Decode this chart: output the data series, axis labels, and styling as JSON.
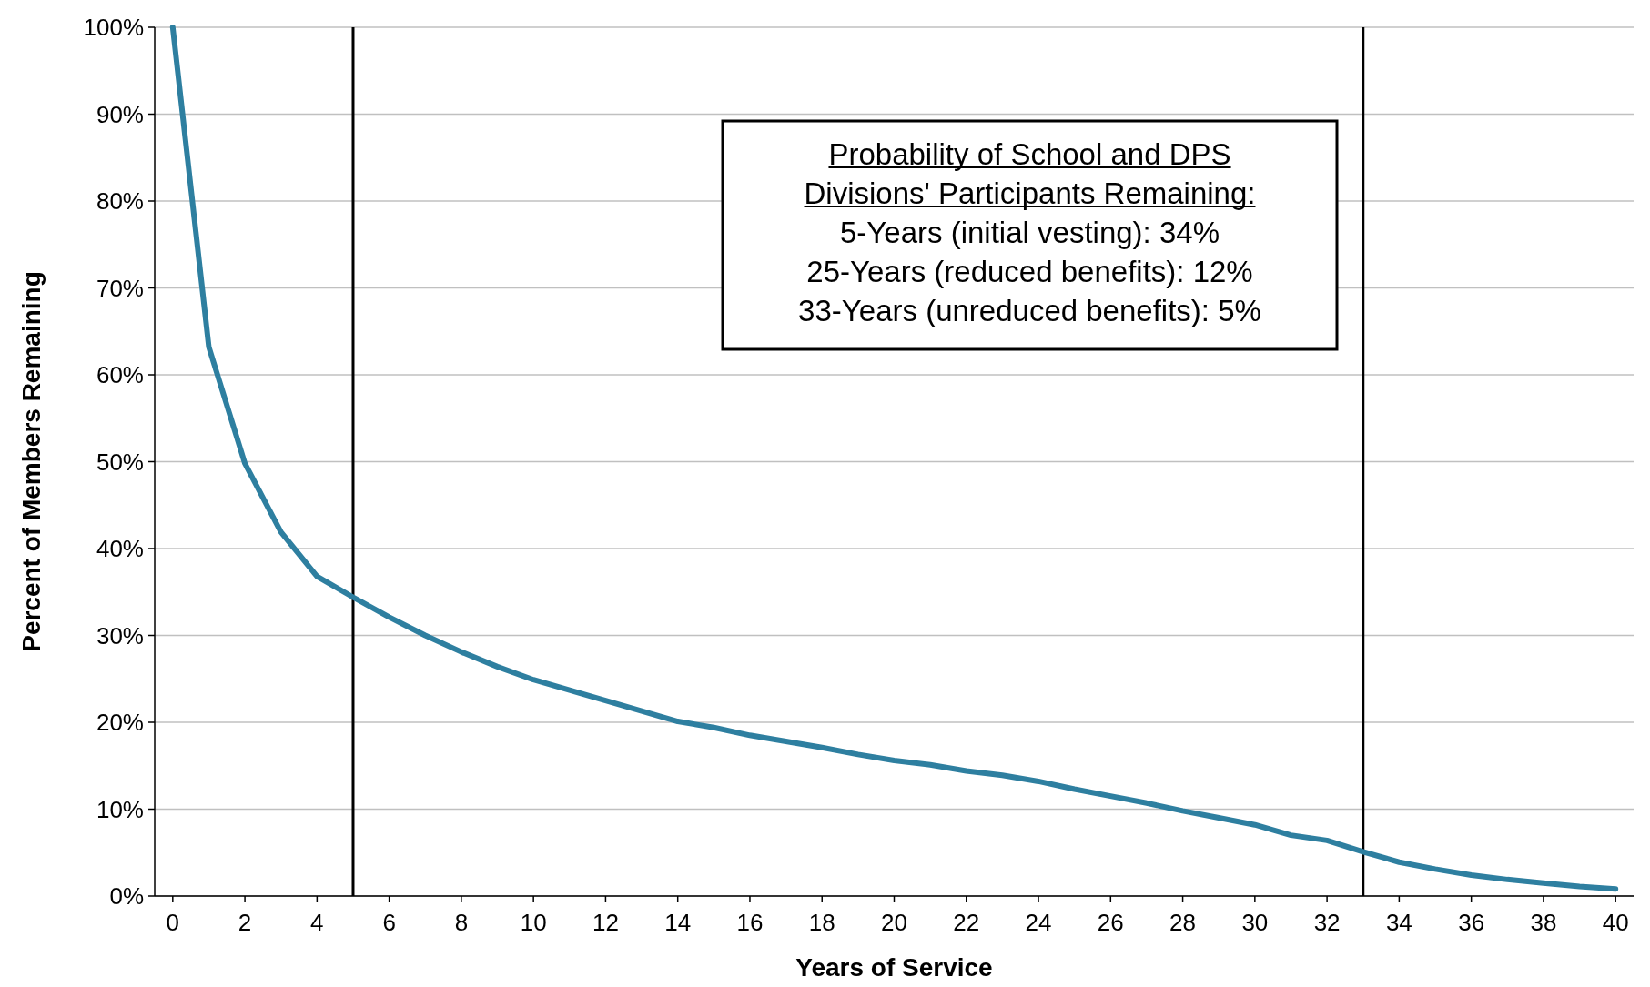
{
  "chart_data": {
    "type": "line",
    "xlabel": "Years of Service",
    "ylabel": "Percent of Members Remaining",
    "x": [
      0,
      1,
      2,
      3,
      4,
      5,
      6,
      7,
      8,
      9,
      10,
      11,
      12,
      13,
      14,
      15,
      16,
      17,
      18,
      19,
      20,
      21,
      22,
      23,
      24,
      25,
      26,
      27,
      28,
      29,
      30,
      31,
      32,
      33,
      34,
      35,
      36,
      37,
      38,
      39,
      40
    ],
    "series": [
      {
        "color": "#2e7fa0",
        "values": [
          100,
          63.2,
          49.8,
          41.9,
          36.8,
          34.4,
          32.1,
          30.0,
          28.1,
          26.4,
          24.9,
          23.7,
          22.5,
          21.3,
          20.1,
          19.4,
          18.5,
          17.8,
          17.1,
          16.3,
          15.6,
          15.1,
          14.4,
          13.9,
          13.2,
          12.3,
          11.5,
          10.7,
          9.8,
          9.0,
          8.2,
          7.0,
          6.4,
          5.1,
          3.9,
          3.1,
          2.4,
          1.9,
          1.5,
          1.1,
          0.8
        ]
      }
    ],
    "xlim": [
      -0.5,
      40.5
    ],
    "xticks": [
      0,
      2,
      4,
      6,
      8,
      10,
      12,
      14,
      16,
      18,
      20,
      22,
      24,
      26,
      28,
      30,
      32,
      34,
      36,
      38,
      40
    ],
    "ylim": [
      0,
      100
    ],
    "yticks": [
      {
        "value": 0,
        "label": "0%"
      },
      {
        "value": 10,
        "label": "10%"
      },
      {
        "value": 20,
        "label": "20%"
      },
      {
        "value": 30,
        "label": "30%"
      },
      {
        "value": 40,
        "label": "40%"
      },
      {
        "value": 50,
        "label": "50%"
      },
      {
        "value": 60,
        "label": "60%"
      },
      {
        "value": 70,
        "label": "70%"
      },
      {
        "value": 80,
        "label": "80%"
      },
      {
        "value": 90,
        "label": "90%"
      },
      {
        "value": 100,
        "label": "100%"
      }
    ],
    "grid": "y",
    "marker": "none",
    "line_style": "solid",
    "ref_lines": [
      {
        "axis": "x",
        "value": 5,
        "color": "#000000"
      },
      {
        "axis": "x",
        "value": 33,
        "color": "#000000"
      }
    ],
    "annotations": [
      "Probability of School and DPS Divisions' Participants Remaining:",
      "5-Years (initial vesting): 34%",
      "25-Years (reduced benefits): 12%",
      "33-Years (unreduced benefits): 5%"
    ]
  }
}
